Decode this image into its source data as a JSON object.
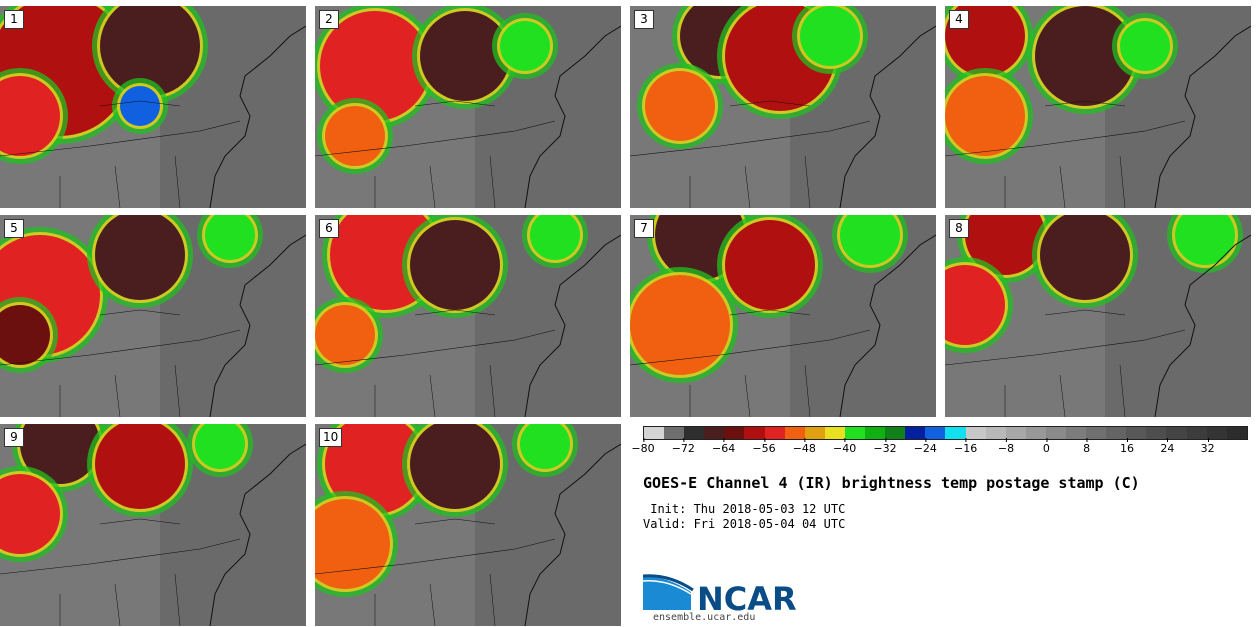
{
  "panels": [
    {
      "label": "1"
    },
    {
      "label": "2"
    },
    {
      "label": "3"
    },
    {
      "label": "4"
    },
    {
      "label": "5"
    },
    {
      "label": "6"
    },
    {
      "label": "7"
    },
    {
      "label": "8"
    },
    {
      "label": "9"
    },
    {
      "label": "10"
    }
  ],
  "colorbar": {
    "colors": [
      "#d4d4d4",
      "#6e6e6e",
      "#2e2e2e",
      "#4a1e1e",
      "#6b0f0f",
      "#b00f0f",
      "#e02222",
      "#f06010",
      "#e0a010",
      "#e8e020",
      "#20e020",
      "#10b010",
      "#108018",
      "#0020a0",
      "#1060e0",
      "#10e0f0",
      "#c8c8c8",
      "#b8b8b8",
      "#a8a8a8",
      "#989898",
      "#8a8a8a",
      "#7c7c7c",
      "#707070",
      "#646464",
      "#585858",
      "#4e4e4e",
      "#444444",
      "#3c3c3c",
      "#343434",
      "#2c2c2c"
    ],
    "tick_labels": [
      "−80",
      "−72",
      "−64",
      "−56",
      "−48",
      "−40",
      "−32",
      "−24",
      "−16",
      "−8",
      "0",
      "8",
      "16",
      "24",
      "32"
    ],
    "min": -80,
    "max": 40
  },
  "title": "GOES-E Channel 4 (IR) brightness temp postage stamp (C)",
  "init": " Init: Thu 2018-05-03 12 UTC",
  "valid": "Valid: Fri 2018-05-04 04 UTC",
  "logo": {
    "text": "NCAR",
    "url": "ensemble.ucar.edu",
    "color": "#0a4d86",
    "accent": "#1a8ad4"
  }
}
